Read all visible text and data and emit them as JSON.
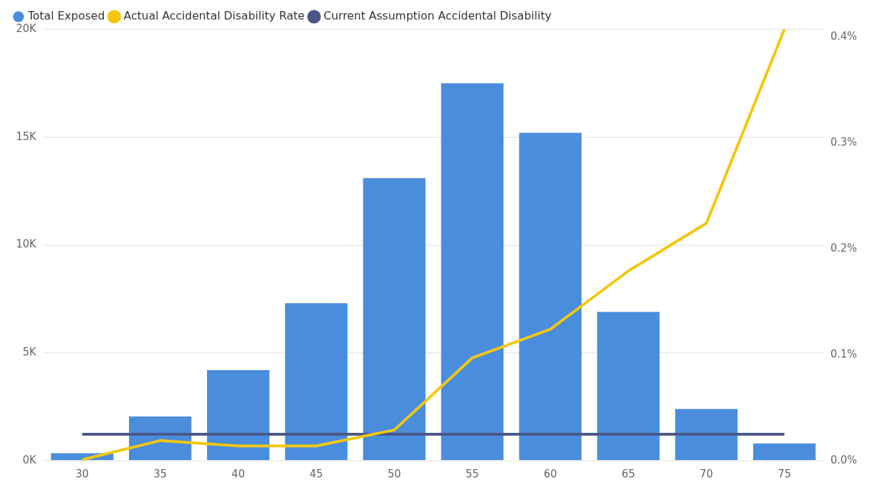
{
  "chart_data": {
    "type": "bar",
    "categories": [
      "30",
      "35",
      "40",
      "45",
      "50",
      "55",
      "60",
      "65",
      "70",
      "75"
    ],
    "series": [
      {
        "name": "Total Exposed",
        "color": "#4a8ddc",
        "values": [
          350,
          2050,
          4200,
          7300,
          13100,
          17500,
          15200,
          6900,
          2400,
          800
        ]
      },
      {
        "name": "Actual Accidental Disability Rate",
        "type": "line",
        "axis": "y2",
        "color": "#f2c80f",
        "values": [
          0.001,
          0.019,
          0.014,
          0.014,
          0.029,
          0.097,
          0.124,
          0.179,
          0.224,
          0.407
        ]
      },
      {
        "name": "Current Assumption Accidental Disability",
        "type": "line",
        "axis": "y2",
        "color": "#4a5788",
        "values": [
          0.025,
          0.025,
          0.025,
          0.025,
          0.025,
          0.025,
          0.025,
          0.025,
          0.025,
          0.025
        ]
      }
    ],
    "ylim": [
      0,
      20000
    ],
    "yticks": [
      {
        "value": 0,
        "label": "0K"
      },
      {
        "value": 5000,
        "label": "5K"
      },
      {
        "value": 10000,
        "label": "10K"
      },
      {
        "value": 15000,
        "label": "15K"
      },
      {
        "value": 20000,
        "label": "20K"
      }
    ],
    "y2lim": [
      0,
      0.407
    ],
    "y2ticks": [
      {
        "value": 0,
        "label": "0.0%"
      },
      {
        "value": 0.1,
        "label": "0.1%"
      },
      {
        "value": 0.2,
        "label": "0.2%"
      },
      {
        "value": 0.3,
        "label": "0.3%"
      },
      {
        "value": 0.4,
        "label": "0.4%"
      }
    ],
    "grid": "y",
    "legend": "top left",
    "marker": "none",
    "line_style": "solid"
  }
}
